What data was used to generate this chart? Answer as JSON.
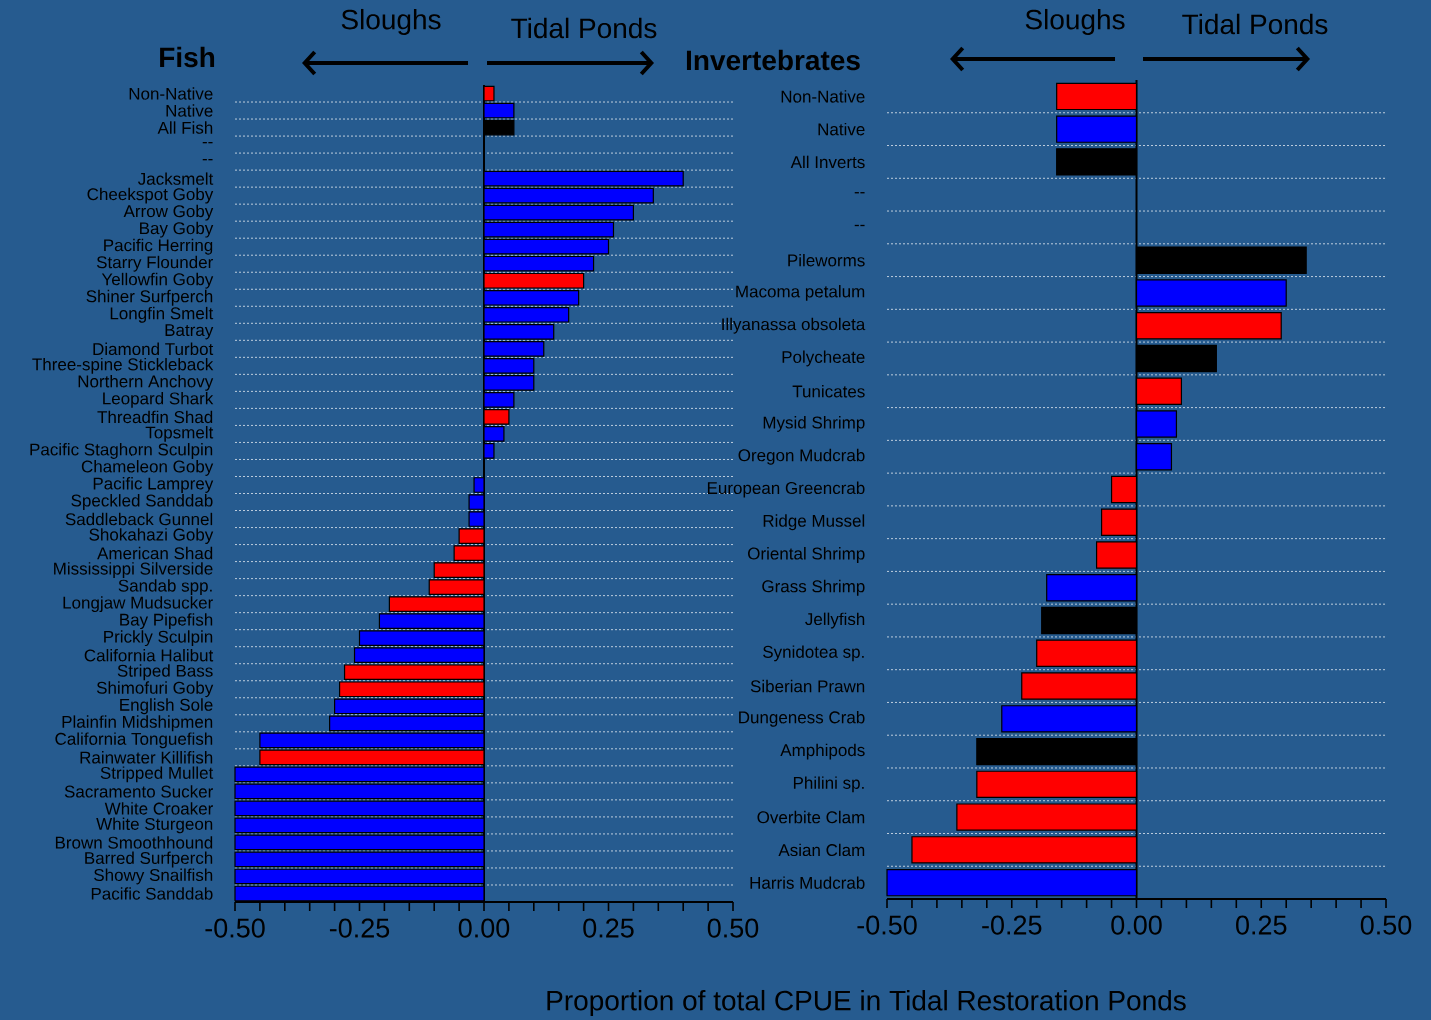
{
  "chart_data": [
    {
      "type": "bar",
      "orientation": "horizontal",
      "title": "Fish",
      "xlabel": "Proportion of total CPUE in Tidal Restoration Ponds",
      "annotations": [
        "Sloughs",
        "Tidal Ponds"
      ],
      "categories": [
        "Non-Native",
        "Native",
        "All Fish",
        "--",
        "--",
        "Jacksmelt",
        "Cheekspot Goby",
        "Arrow Goby",
        "Bay Goby",
        "Pacific Herring",
        "Starry Flounder",
        "Yellowfin Goby",
        "Shiner Surfperch",
        "Longfin Smelt",
        "Batray",
        "Diamond Turbot",
        "Three-spine Stickleback",
        "Northern Anchovy",
        "Leopard Shark",
        "Threadfin Shad",
        "Topsmelt",
        "Pacific Staghorn Sculpin",
        "Chameleon Goby",
        "Pacific Lamprey",
        "Speckled Sanddab",
        "Saddleback Gunnel",
        "Shokahazi Goby",
        "American Shad",
        "Mississippi Silverside",
        "Sandab spp.",
        "Longjaw Mudsucker",
        "Bay Pipefish",
        "Prickly Sculpin",
        "California Halibut",
        "Striped Bass",
        "Shimofuri Goby",
        "English Sole",
        "Plainfin Midshipmen",
        "California Tonguefish",
        "Rainwater Killifish",
        "Stripped Mullet",
        "Sacramento Sucker",
        "White Croaker",
        "White Sturgeon",
        "Brown Smoothhound",
        "Barred Surfperch",
        "Showy Snailfish",
        "Pacific Sanddab"
      ],
      "values": [
        0.02,
        0.06,
        0.06,
        null,
        null,
        0.4,
        0.34,
        0.3,
        0.26,
        0.25,
        0.22,
        0.2,
        0.19,
        0.17,
        0.14,
        0.12,
        0.1,
        0.1,
        0.06,
        0.05,
        0.04,
        0.02,
        0,
        -0.02,
        -0.03,
        -0.03,
        -0.05,
        -0.06,
        -0.1,
        -0.11,
        -0.19,
        -0.21,
        -0.25,
        -0.26,
        -0.28,
        -0.29,
        -0.3,
        -0.31,
        -0.45,
        -0.45,
        -0.5,
        -0.5,
        -0.5,
        -0.5,
        -0.5,
        -0.5,
        -0.5,
        -0.5
      ],
      "colors": [
        "#ff0000",
        "#0000ff",
        "#000000",
        "#0000ff",
        "#0000ff",
        "#0000ff",
        "#0000ff",
        "#0000ff",
        "#0000ff",
        "#0000ff",
        "#0000ff",
        "#ff0000",
        "#0000ff",
        "#0000ff",
        "#0000ff",
        "#0000ff",
        "#0000ff",
        "#0000ff",
        "#0000ff",
        "#ff0000",
        "#0000ff",
        "#0000ff",
        "#0000ff",
        "#0000ff",
        "#0000ff",
        "#0000ff",
        "#ff0000",
        "#ff0000",
        "#ff0000",
        "#ff0000",
        "#ff0000",
        "#0000ff",
        "#0000ff",
        "#0000ff",
        "#ff0000",
        "#ff0000",
        "#0000ff",
        "#0000ff",
        "#0000ff",
        "#ff0000",
        "#0000ff",
        "#0000ff",
        "#0000ff",
        "#0000ff",
        "#0000ff",
        "#0000ff",
        "#0000ff",
        "#0000ff"
      ],
      "xlim": [
        -0.5,
        0.5
      ],
      "xticks": [
        {
          "value": -0.5,
          "label": "-0.50"
        },
        {
          "value": -0.45,
          "label": null
        },
        {
          "value": -0.4,
          "label": null
        },
        {
          "value": -0.35,
          "label": null
        },
        {
          "value": -0.3,
          "label": null
        },
        {
          "value": -0.25,
          "label": "-0.25"
        },
        {
          "value": -0.2,
          "label": null
        },
        {
          "value": -0.15,
          "label": null
        },
        {
          "value": -0.1,
          "label": null
        },
        {
          "value": -0.05,
          "label": null
        },
        {
          "value": 0,
          "label": "0.00"
        },
        {
          "value": 0.05,
          "label": null
        },
        {
          "value": 0.1,
          "label": null
        },
        {
          "value": 0.15,
          "label": null
        },
        {
          "value": 0.2,
          "label": null
        },
        {
          "value": 0.25,
          "label": "0.25"
        },
        {
          "value": 0.3,
          "label": null
        },
        {
          "value": 0.35,
          "label": null
        },
        {
          "value": 0.4,
          "label": null
        },
        {
          "value": 0.45,
          "label": null
        },
        {
          "value": 0.5,
          "label": "0.50"
        }
      ],
      "grid": "y"
    },
    {
      "type": "bar",
      "orientation": "horizontal",
      "title": "Invertebrates",
      "annotations": [
        "Sloughs",
        "Tidal Ponds"
      ],
      "categories": [
        "Non-Native",
        "Native",
        "All Inverts",
        "--",
        "--",
        "Pileworms",
        "Macoma petalum",
        "Illyanassa obsoleta",
        "Polycheate",
        "Tunicates",
        "Mysid Shrimp",
        "Oregon  Mudcrab",
        "European Greencrab",
        "Ridge Mussel",
        "Oriental Shrimp",
        "Grass Shrimp",
        "Jellyfish",
        "Synidotea sp.",
        "Siberian Prawn",
        "Dungeness Crab",
        "Amphipods",
        "Philini sp.",
        "Overbite Clam",
        "Asian Clam",
        "Harris Mudcrab"
      ],
      "values": [
        -0.16,
        -0.16,
        -0.16,
        null,
        null,
        0.34,
        0.3,
        0.29,
        0.16,
        0.09,
        0.08,
        0.07,
        -0.05,
        -0.07,
        -0.08,
        -0.18,
        -0.19,
        -0.2,
        -0.23,
        -0.27,
        -0.32,
        -0.32,
        -0.36,
        -0.45,
        -0.5
      ],
      "colors": [
        "#ff0000",
        "#0000ff",
        "#000000",
        "#0000ff",
        "#0000ff",
        "#000000",
        "#0000ff",
        "#ff0000",
        "#000000",
        "#ff0000",
        "#0000ff",
        "#0000ff",
        "#ff0000",
        "#ff0000",
        "#ff0000",
        "#0000ff",
        "#000000",
        "#ff0000",
        "#ff0000",
        "#0000ff",
        "#000000",
        "#ff0000",
        "#ff0000",
        "#ff0000",
        "#0000ff"
      ],
      "xlim": [
        -0.5,
        0.5
      ],
      "xticks": [
        {
          "value": -0.5,
          "label": "-0.50"
        },
        {
          "value": -0.45,
          "label": null
        },
        {
          "value": -0.4,
          "label": null
        },
        {
          "value": -0.35,
          "label": null
        },
        {
          "value": -0.3,
          "label": null
        },
        {
          "value": -0.25,
          "label": "-0.25"
        },
        {
          "value": -0.2,
          "label": null
        },
        {
          "value": -0.15,
          "label": null
        },
        {
          "value": -0.1,
          "label": null
        },
        {
          "value": -0.05,
          "label": null
        },
        {
          "value": 0,
          "label": "0.00"
        },
        {
          "value": 0.05,
          "label": null
        },
        {
          "value": 0.1,
          "label": null
        },
        {
          "value": 0.15,
          "label": null
        },
        {
          "value": 0.2,
          "label": null
        },
        {
          "value": 0.25,
          "label": "0.25"
        },
        {
          "value": 0.3,
          "label": null
        },
        {
          "value": 0.35,
          "label": null
        },
        {
          "value": 0.4,
          "label": null
        },
        {
          "value": 0.45,
          "label": null
        },
        {
          "value": 0.5,
          "label": "0.50"
        }
      ],
      "grid": "y"
    }
  ]
}
